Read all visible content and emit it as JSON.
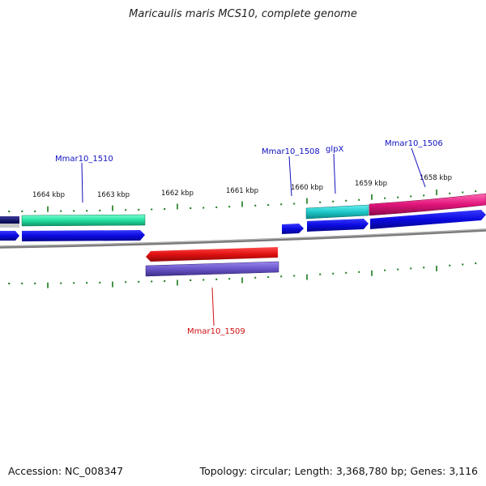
{
  "title": "Maricaulis maris MCS10, complete genome",
  "footer": {
    "accession": "Accession: NC_008347",
    "summary": "Topology: circular; Length: 3,368,780 bp; Genes: 3,116"
  },
  "ticks": [
    {
      "label": "1664 kbp"
    },
    {
      "label": "1663 kbp"
    },
    {
      "label": "1662 kbp"
    },
    {
      "label": "1661 kbp"
    },
    {
      "label": "1660 kbp"
    },
    {
      "label": "1659 kbp"
    },
    {
      "label": "1658 kbp"
    }
  ],
  "gene_labels": [
    {
      "text": "Mmar10_1510",
      "color": "#1010c0"
    },
    {
      "text": "Mmar10_1508",
      "color": "#1010c0"
    },
    {
      "text": "glpX",
      "color": "#1010c0"
    },
    {
      "text": "Mmar10_1506",
      "color": "#1010c0"
    },
    {
      "text": "Mmar10_1509",
      "color": "#d01010"
    }
  ],
  "colors": {
    "backbone": "#7a7a7a",
    "tick": "#1a7a1a",
    "cds_forward": "#0a0ae0",
    "cds_reverse": "#e01010",
    "feature_teal": "#1ec9c9",
    "feature_mint": "#22e0a0",
    "feature_pink": "#e0147a",
    "feature_navy": "#101060",
    "feature_purple": "#6a55c8"
  }
}
